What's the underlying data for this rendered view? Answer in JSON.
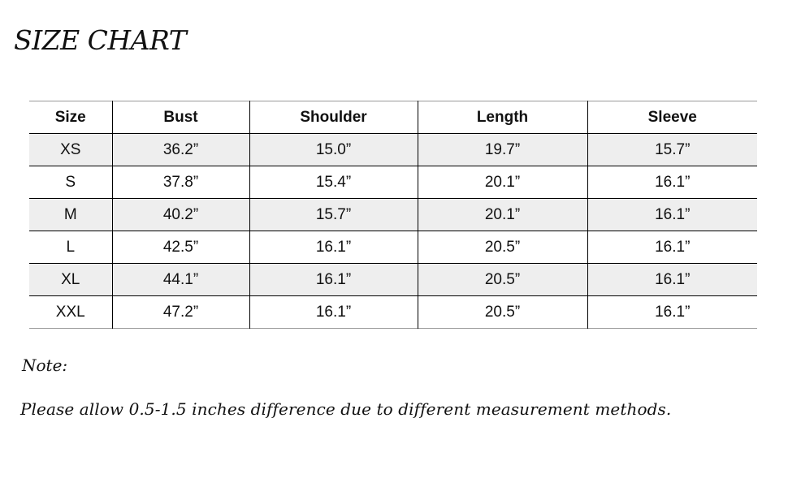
{
  "title": "SIZE CHART",
  "table": {
    "headers": [
      "Size",
      "Bust",
      "Shoulder",
      "Length",
      "Sleeve"
    ],
    "rows": [
      [
        "XS",
        "36.2”",
        "15.0”",
        "19.7”",
        "15.7”"
      ],
      [
        "S",
        "37.8”",
        "15.4”",
        "20.1”",
        "16.1”"
      ],
      [
        "M",
        "40.2”",
        "15.7”",
        "20.1”",
        "16.1”"
      ],
      [
        "L",
        "42.5”",
        "16.1”",
        "20.5”",
        "16.1”"
      ],
      [
        "XL",
        "44.1”",
        "16.1”",
        "20.5”",
        "16.1”"
      ],
      [
        "XXL",
        "47.2”",
        "16.1”",
        "20.5”",
        "16.1”"
      ]
    ]
  },
  "note": {
    "label": "Note:",
    "text": "Please allow 0.5-1.5 inches difference due to different measurement methods."
  }
}
